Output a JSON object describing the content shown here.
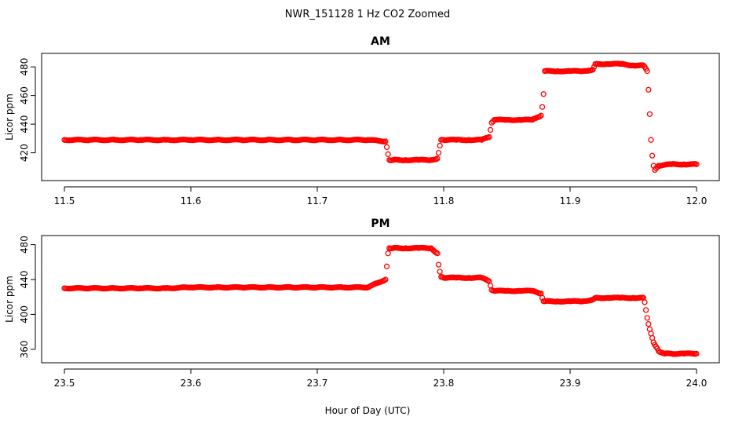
{
  "figure": {
    "title": "NWR_151128  1 Hz CO2 Zoomed",
    "xlabel": "Hour of Day (UTC)"
  },
  "chart_data": [
    {
      "type": "scatter",
      "title": "AM",
      "xlabel": "",
      "ylabel": "Licor ppm",
      "xlim": [
        11.5,
        12.0
      ],
      "ylim": [
        405,
        485
      ],
      "xticks": [
        11.5,
        11.6,
        11.7,
        11.8,
        11.9,
        12.0
      ],
      "xtick_labels": [
        "11.5",
        "11.6",
        "11.7",
        "11.8",
        "11.9",
        "12.0"
      ],
      "yticks": [
        420,
        440,
        460,
        480
      ],
      "ytick_labels": [
        "420",
        "440",
        "460",
        "480"
      ],
      "grid": false,
      "marker": "open-circle",
      "color": "#ff0000",
      "series": [
        {
          "x": [
            11.5,
            11.52,
            11.54,
            11.56,
            11.58,
            11.6,
            11.62,
            11.64,
            11.66,
            11.68,
            11.7,
            11.72,
            11.74,
            11.754,
            11.755,
            11.756,
            11.757,
            11.76,
            11.77,
            11.78,
            11.79,
            11.795,
            11.796,
            11.797,
            11.798,
            11.8,
            11.81,
            11.82,
            11.83,
            11.836,
            11.837,
            11.838,
            11.84,
            11.85,
            11.86,
            11.87,
            11.877,
            11.878,
            11.879,
            11.88,
            11.89,
            11.9,
            11.91,
            11.918,
            11.92,
            11.93,
            11.94,
            11.95,
            11.958,
            11.961,
            11.962,
            11.963,
            11.964,
            11.965,
            11.966,
            11.967,
            11.97,
            11.98,
            11.99,
            12.0
          ],
          "y": [
            429,
            429,
            429,
            429,
            429,
            429,
            429,
            429,
            429,
            429,
            429,
            429,
            429,
            428,
            424,
            419,
            415,
            415,
            415,
            415,
            415,
            416,
            420,
            425,
            429,
            429,
            429,
            429,
            429,
            431,
            436,
            441,
            443,
            443,
            443,
            443,
            446,
            452,
            461,
            477,
            477,
            477,
            477,
            478,
            482,
            482,
            482,
            481,
            481,
            477,
            464,
            447,
            429,
            418,
            411,
            408,
            411,
            412,
            412,
            412
          ]
        }
      ]
    },
    {
      "type": "scatter",
      "title": "PM",
      "xlabel": "Hour of Day (UTC)",
      "ylabel": "Licor ppm",
      "xlim": [
        23.5,
        24.0
      ],
      "ylim": [
        350,
        485
      ],
      "xticks": [
        23.5,
        23.6,
        23.7,
        23.8,
        23.9,
        24.0
      ],
      "xtick_labels": [
        "23.5",
        "23.6",
        "23.7",
        "23.8",
        "23.9",
        "24.0"
      ],
      "yticks": [
        360,
        400,
        440,
        480
      ],
      "ytick_labels": [
        "360",
        "400",
        "440",
        "480"
      ],
      "grid": false,
      "marker": "open-circle",
      "color": "#ff0000",
      "series": [
        {
          "x": [
            23.5,
            23.52,
            23.54,
            23.56,
            23.58,
            23.6,
            23.62,
            23.64,
            23.66,
            23.68,
            23.7,
            23.72,
            23.74,
            23.754,
            23.755,
            23.756,
            23.757,
            23.76,
            23.77,
            23.78,
            23.79,
            23.795,
            23.796,
            23.797,
            23.798,
            23.8,
            23.81,
            23.82,
            23.83,
            23.836,
            23.837,
            23.838,
            23.84,
            23.85,
            23.86,
            23.87,
            23.877,
            23.878,
            23.879,
            23.88,
            23.89,
            23.9,
            23.91,
            23.918,
            23.92,
            23.93,
            23.94,
            23.95,
            23.958,
            23.959,
            23.96,
            23.961,
            23.962,
            23.963,
            23.964,
            23.965,
            23.966,
            23.968,
            23.97,
            23.975,
            23.98,
            23.99,
            24.0
          ],
          "y": [
            430,
            430,
            430,
            430,
            430,
            431,
            431,
            431,
            431,
            431,
            431,
            431,
            431,
            440,
            455,
            470,
            476,
            476,
            476,
            476,
            476,
            470,
            457,
            449,
            443,
            442,
            442,
            442,
            442,
            438,
            433,
            428,
            427,
            427,
            427,
            427,
            424,
            419,
            415,
            415,
            415,
            415,
            415,
            417,
            419,
            419,
            419,
            419,
            419,
            414,
            405,
            396,
            389,
            383,
            378,
            373,
            368,
            363,
            358,
            355,
            355,
            355,
            355
          ]
        }
      ]
    }
  ]
}
